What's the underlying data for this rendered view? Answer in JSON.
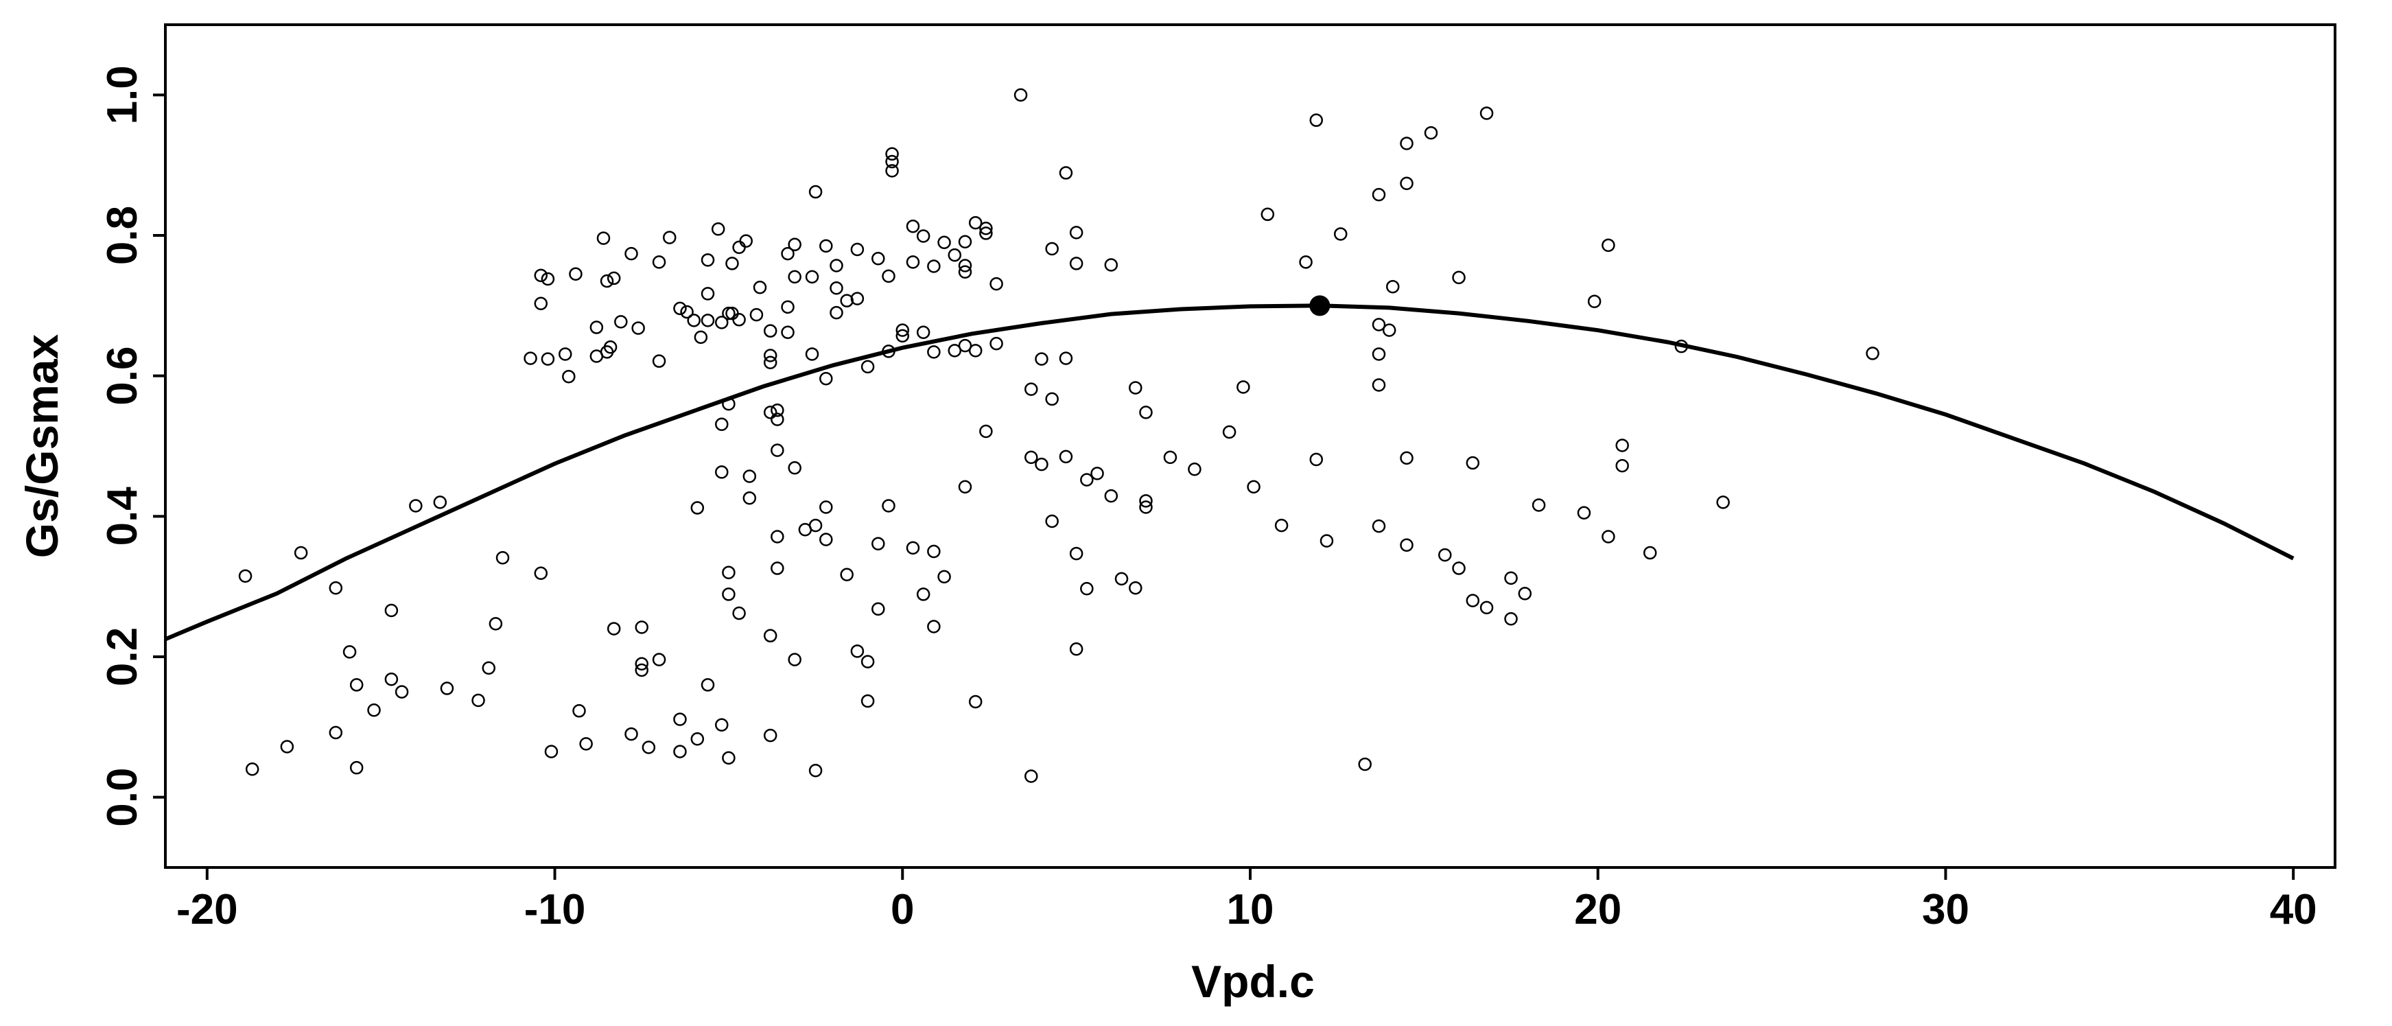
{
  "chart_data": {
    "type": "scatter",
    "title": "",
    "xlabel": "Vpd.c",
    "ylabel": "Gs/Gsmax",
    "xlim": [
      -21.2,
      41.2
    ],
    "ylim": [
      -0.1,
      1.1
    ],
    "xticks": [
      -20,
      -10,
      0,
      10,
      20,
      30,
      40
    ],
    "yticks": [
      0.0,
      0.2,
      0.4,
      0.6,
      0.8,
      1.0
    ],
    "x_tick_labels": [
      "-20",
      "-10",
      "0",
      "10",
      "20",
      "30",
      "40"
    ],
    "y_tick_labels": [
      "0.0",
      "0.2",
      "0.4",
      "0.6",
      "0.8",
      "1.0"
    ],
    "grid": false,
    "legend": "none",
    "colors": {
      "points": "#000000",
      "curve": "#000000",
      "background": "#ffffff"
    },
    "fit_curve": {
      "model": "quadratic",
      "peak_x": 12,
      "peak_y": 0.7,
      "x_range": [
        -21.2,
        40
      ],
      "samples": [
        [
          -21.2,
          0.225
        ],
        [
          -20,
          0.25
        ],
        [
          -18,
          0.29
        ],
        [
          -16,
          0.34
        ],
        [
          -14,
          0.385
        ],
        [
          -12,
          0.43
        ],
        [
          -10,
          0.475
        ],
        [
          -8,
          0.515
        ],
        [
          -6,
          0.55
        ],
        [
          -4,
          0.585
        ],
        [
          -2,
          0.615
        ],
        [
          0,
          0.64
        ],
        [
          2,
          0.66
        ],
        [
          4,
          0.675
        ],
        [
          6,
          0.688
        ],
        [
          8,
          0.695
        ],
        [
          10,
          0.699
        ],
        [
          12,
          0.7
        ],
        [
          14,
          0.697
        ],
        [
          16,
          0.689
        ],
        [
          18,
          0.678
        ],
        [
          20,
          0.665
        ],
        [
          22,
          0.648
        ],
        [
          24,
          0.627
        ],
        [
          26,
          0.602
        ],
        [
          28,
          0.575
        ],
        [
          30,
          0.545
        ],
        [
          32,
          0.51
        ],
        [
          34,
          0.475
        ],
        [
          36,
          0.435
        ],
        [
          38,
          0.39
        ],
        [
          40,
          0.34
        ]
      ]
    },
    "highlight_point": {
      "x": 12,
      "y": 0.7
    },
    "points": [
      [
        -18.9,
        0.315
      ],
      [
        -18.7,
        0.04
      ],
      [
        -17.7,
        0.072
      ],
      [
        -17.3,
        0.348
      ],
      [
        -16.3,
        0.298
      ],
      [
        -16.3,
        0.092
      ],
      [
        -15.9,
        0.207
      ],
      [
        -15.7,
        0.16
      ],
      [
        -15.7,
        0.042
      ],
      [
        -15.2,
        0.124
      ],
      [
        -14.7,
        0.266
      ],
      [
        -14.7,
        0.168
      ],
      [
        -14.4,
        0.15
      ],
      [
        -14.0,
        0.415
      ],
      [
        -13.3,
        0.42
      ],
      [
        -13.1,
        0.155
      ],
      [
        -12.2,
        0.138
      ],
      [
        -11.9,
        0.184
      ],
      [
        -11.7,
        0.247
      ],
      [
        -11.5,
        0.341
      ],
      [
        -10.7,
        0.625
      ],
      [
        -10.4,
        0.743
      ],
      [
        -10.4,
        0.703
      ],
      [
        -10.4,
        0.319
      ],
      [
        -10.2,
        0.738
      ],
      [
        -10.2,
        0.624
      ],
      [
        -10.1,
        0.065
      ],
      [
        -9.7,
        0.631
      ],
      [
        -9.6,
        0.599
      ],
      [
        -9.4,
        0.745
      ],
      [
        -9.3,
        0.123
      ],
      [
        -9.1,
        0.076
      ],
      [
        -8.8,
        0.669
      ],
      [
        -8.8,
        0.628
      ],
      [
        -8.6,
        0.796
      ],
      [
        -8.5,
        0.735
      ],
      [
        -8.5,
        0.634
      ],
      [
        -8.4,
        0.641
      ],
      [
        -8.3,
        0.739
      ],
      [
        -8.3,
        0.24
      ],
      [
        -8.1,
        0.677
      ],
      [
        -7.8,
        0.774
      ],
      [
        -7.8,
        0.09
      ],
      [
        -7.6,
        0.668
      ],
      [
        -7.5,
        0.242
      ],
      [
        -7.5,
        0.19
      ],
      [
        -7.5,
        0.181
      ],
      [
        -7.3,
        0.071
      ],
      [
        -7.0,
        0.762
      ],
      [
        -7.0,
        0.621
      ],
      [
        -7.0,
        0.196
      ],
      [
        -6.7,
        0.797
      ],
      [
        -6.4,
        0.696
      ],
      [
        -6.4,
        0.111
      ],
      [
        -6.4,
        0.065
      ],
      [
        -6.2,
        0.691
      ],
      [
        -6.0,
        0.679
      ],
      [
        -5.9,
        0.412
      ],
      [
        -5.9,
        0.083
      ],
      [
        -5.8,
        0.655
      ],
      [
        -5.6,
        0.765
      ],
      [
        -5.6,
        0.717
      ],
      [
        -5.6,
        0.679
      ],
      [
        -5.6,
        0.16
      ],
      [
        -5.3,
        0.809
      ],
      [
        -5.2,
        0.676
      ],
      [
        -5.2,
        0.531
      ],
      [
        -5.2,
        0.463
      ],
      [
        -5.2,
        0.103
      ],
      [
        -5.0,
        0.689
      ],
      [
        -5.0,
        0.56
      ],
      [
        -5.0,
        0.32
      ],
      [
        -5.0,
        0.289
      ],
      [
        -5.0,
        0.056
      ],
      [
        -4.9,
        0.76
      ],
      [
        -4.9,
        0.689
      ],
      [
        -4.7,
        0.783
      ],
      [
        -4.7,
        0.68
      ],
      [
        -4.7,
        0.262
      ],
      [
        -4.5,
        0.792
      ],
      [
        -4.4,
        0.457
      ],
      [
        -4.4,
        0.426
      ],
      [
        -4.2,
        0.687
      ],
      [
        -4.1,
        0.726
      ],
      [
        -3.8,
        0.664
      ],
      [
        -3.8,
        0.629
      ],
      [
        -3.8,
        0.619
      ],
      [
        -3.8,
        0.548
      ],
      [
        -3.8,
        0.23
      ],
      [
        -3.8,
        0.088
      ],
      [
        -3.6,
        0.551
      ],
      [
        -3.6,
        0.538
      ],
      [
        -3.6,
        0.494
      ],
      [
        -3.6,
        0.371
      ],
      [
        -3.6,
        0.326
      ],
      [
        -3.3,
        0.774
      ],
      [
        -3.3,
        0.662
      ],
      [
        -3.3,
        0.698
      ],
      [
        -3.1,
        0.787
      ],
      [
        -3.1,
        0.741
      ],
      [
        -3.1,
        0.469
      ],
      [
        -3.1,
        0.196
      ],
      [
        -2.8,
        0.381
      ],
      [
        -2.6,
        0.741
      ],
      [
        -2.6,
        0.631
      ],
      [
        -2.5,
        0.862
      ],
      [
        -2.5,
        0.387
      ],
      [
        -2.5,
        0.038
      ],
      [
        -2.2,
        0.785
      ],
      [
        -2.2,
        0.413
      ],
      [
        -2.2,
        0.367
      ],
      [
        -2.2,
        0.596
      ],
      [
        -1.9,
        0.757
      ],
      [
        -1.9,
        0.725
      ],
      [
        -1.9,
        0.69
      ],
      [
        -1.6,
        0.707
      ],
      [
        -1.6,
        0.317
      ],
      [
        -1.3,
        0.78
      ],
      [
        -1.3,
        0.71
      ],
      [
        -1.3,
        0.208
      ],
      [
        -1.0,
        0.613
      ],
      [
        -1.0,
        0.193
      ],
      [
        -1.0,
        0.137
      ],
      [
        -0.7,
        0.767
      ],
      [
        -0.7,
        0.361
      ],
      [
        -0.7,
        0.268
      ],
      [
        -0.4,
        0.742
      ],
      [
        -0.4,
        0.635
      ],
      [
        -0.4,
        0.415
      ],
      [
        -0.3,
        0.916
      ],
      [
        -0.3,
        0.905
      ],
      [
        -0.3,
        0.892
      ],
      [
        0.0,
        0.665
      ],
      [
        0.0,
        0.657
      ],
      [
        0.3,
        0.813
      ],
      [
        0.3,
        0.762
      ],
      [
        0.3,
        0.355
      ],
      [
        0.6,
        0.799
      ],
      [
        0.6,
        0.662
      ],
      [
        0.6,
        0.289
      ],
      [
        0.9,
        0.756
      ],
      [
        0.9,
        0.634
      ],
      [
        0.9,
        0.35
      ],
      [
        0.9,
        0.243
      ],
      [
        1.2,
        0.79
      ],
      [
        1.2,
        0.314
      ],
      [
        1.5,
        0.772
      ],
      [
        1.5,
        0.636
      ],
      [
        1.8,
        0.791
      ],
      [
        1.8,
        0.757
      ],
      [
        1.8,
        0.748
      ],
      [
        1.8,
        0.643
      ],
      [
        1.8,
        0.442
      ],
      [
        2.1,
        0.818
      ],
      [
        2.1,
        0.636
      ],
      [
        2.1,
        0.136
      ],
      [
        2.4,
        0.81
      ],
      [
        2.4,
        0.803
      ],
      [
        2.4,
        0.521
      ],
      [
        2.7,
        0.731
      ],
      [
        2.7,
        0.646
      ],
      [
        3.4,
        1.0
      ],
      [
        3.7,
        0.581
      ],
      [
        3.7,
        0.484
      ],
      [
        3.7,
        0.03
      ],
      [
        4.0,
        0.624
      ],
      [
        4.0,
        0.474
      ],
      [
        4.3,
        0.781
      ],
      [
        4.3,
        0.567
      ],
      [
        4.3,
        0.393
      ],
      [
        4.7,
        0.889
      ],
      [
        4.7,
        0.625
      ],
      [
        4.7,
        0.485
      ],
      [
        5.0,
        0.804
      ],
      [
        5.0,
        0.76
      ],
      [
        5.0,
        0.347
      ],
      [
        5.0,
        0.211
      ],
      [
        5.3,
        0.452
      ],
      [
        5.3,
        0.297
      ],
      [
        5.6,
        0.461
      ],
      [
        6.0,
        0.758
      ],
      [
        6.0,
        0.429
      ],
      [
        6.3,
        0.311
      ],
      [
        6.7,
        0.583
      ],
      [
        6.7,
        0.298
      ],
      [
        7.0,
        0.548
      ],
      [
        7.0,
        0.422
      ],
      [
        7.0,
        0.413
      ],
      [
        7.7,
        0.484
      ],
      [
        8.4,
        0.467
      ],
      [
        9.4,
        0.52
      ],
      [
        9.8,
        0.584
      ],
      [
        10.1,
        0.442
      ],
      [
        10.5,
        0.83
      ],
      [
        10.9,
        0.387
      ],
      [
        11.6,
        0.762
      ],
      [
        11.9,
        0.964
      ],
      [
        11.9,
        0.481
      ],
      [
        12.2,
        0.365
      ],
      [
        12.6,
        0.802
      ],
      [
        13.3,
        0.047
      ],
      [
        13.7,
        0.858
      ],
      [
        13.7,
        0.673
      ],
      [
        13.7,
        0.631
      ],
      [
        13.7,
        0.587
      ],
      [
        13.7,
        0.386
      ],
      [
        14.0,
        0.665
      ],
      [
        14.1,
        0.727
      ],
      [
        14.5,
        0.931
      ],
      [
        14.5,
        0.874
      ],
      [
        14.5,
        0.483
      ],
      [
        14.5,
        0.359
      ],
      [
        15.2,
        0.946
      ],
      [
        15.6,
        0.345
      ],
      [
        16.0,
        0.74
      ],
      [
        16.0,
        0.326
      ],
      [
        16.4,
        0.476
      ],
      [
        16.4,
        0.28
      ],
      [
        16.8,
        0.974
      ],
      [
        16.8,
        0.27
      ],
      [
        17.5,
        0.312
      ],
      [
        17.5,
        0.254
      ],
      [
        17.9,
        0.29
      ],
      [
        18.3,
        0.416
      ],
      [
        19.6,
        0.405
      ],
      [
        19.9,
        0.706
      ],
      [
        20.3,
        0.786
      ],
      [
        20.3,
        0.371
      ],
      [
        20.7,
        0.501
      ],
      [
        20.7,
        0.472
      ],
      [
        21.5,
        0.348
      ],
      [
        22.4,
        0.642
      ],
      [
        23.6,
        0.42
      ],
      [
        27.9,
        0.632
      ]
    ]
  }
}
